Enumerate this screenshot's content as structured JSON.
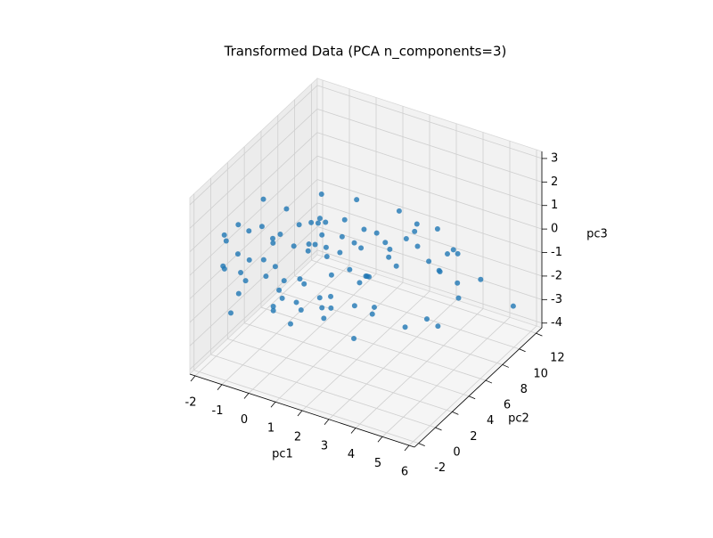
{
  "chart_data": {
    "type": "scatter3d",
    "title": "Transformed Data (PCA n_components=3)",
    "xlabel": "pc1",
    "ylabel": "pc2",
    "zlabel": "pc3",
    "xlim": [
      -2.2,
      6.2
    ],
    "ylim": [
      -2.5,
      12.7
    ],
    "zlim": [
      -4.2,
      3.3
    ],
    "xticks": [
      -2,
      -1,
      0,
      1,
      2,
      3,
      4,
      5,
      6
    ],
    "yticks": [
      -2,
      0,
      2,
      4,
      6,
      8,
      10,
      12
    ],
    "zticks": [
      -4,
      -3,
      -2,
      -1,
      0,
      1,
      2,
      3
    ],
    "grid": true,
    "series": [
      {
        "color": "#1f77b4",
        "x": [
          -1.9,
          -1.5,
          -1.0,
          -0.5,
          0.0,
          0.5,
          1.0,
          1.5,
          2.0,
          2.5,
          -1.8,
          -1.2,
          -0.7,
          -0.2,
          0.3,
          0.8,
          1.3,
          1.8,
          2.3,
          2.8,
          -1.6,
          -1.1,
          -0.6,
          -0.1,
          0.4,
          0.9,
          1.4,
          1.9,
          2.4,
          2.9,
          -1.4,
          -0.9,
          -0.4,
          0.1,
          0.6,
          1.1,
          1.6,
          2.1,
          2.6,
          3.1,
          -2.0,
          -1.3,
          -0.8,
          -0.3,
          0.2,
          0.7,
          1.2,
          1.7,
          2.2,
          2.7,
          -1.7,
          -1.2,
          -0.6,
          0.0,
          0.5,
          1.0,
          1.5,
          2.0,
          2.5,
          3.2,
          -1.5,
          -1.0,
          -0.4,
          0.2,
          0.8,
          1.3,
          1.8,
          2.3,
          2.9,
          3.4,
          3.6,
          3.8,
          4.0,
          4.2,
          3.5,
          3.9,
          4.4,
          3.3,
          3.0,
          4.6,
          3.7,
          4.1,
          2.6,
          3.2,
          4.3,
          5.6,
          3.8,
          2.4,
          1.0,
          2.0
        ],
        "y": [
          0.5,
          1.0,
          -0.5,
          2.0,
          1.5,
          3.0,
          0.0,
          2.5,
          1.0,
          3.5,
          2.0,
          -0.8,
          3.5,
          0.2,
          4.0,
          1.2,
          4.5,
          0.5,
          2.8,
          1.8,
          -0.3,
          2.8,
          1.0,
          5.0,
          -0.6,
          3.8,
          2.0,
          5.2,
          4.2,
          0.8,
          1.6,
          0.4,
          2.4,
          3.2,
          2.2,
          0.1,
          5.8,
          3.4,
          5.5,
          2.6,
          1.2,
          3.4,
          -0.9,
          1.4,
          5.6,
          4.6,
          1.6,
          6.2,
          0.3,
          6.5,
          3.0,
          4.2,
          4.8,
          6.0,
          0.9,
          2.6,
          3.6,
          -0.4,
          4.8,
          4.0,
          -0.6,
          5.2,
          3.0,
          -0.2,
          6.4,
          5.4,
          1.0,
          7.0,
          3.0,
          6.8,
          7.5,
          8.2,
          6.0,
          9.0,
          5.0,
          10.0,
          8.5,
          9.5,
          8.0,
          10.5,
          4.5,
          7.0,
          9.0,
          11.0,
          6.5,
          11.2,
          9.8,
          7.8,
          3.0,
          4.0
        ],
        "z": [
          -0.5,
          0.0,
          -1.0,
          0.5,
          -1.5,
          0.2,
          -0.8,
          -1.2,
          0.4,
          -0.3,
          0.8,
          -1.8,
          0.3,
          -0.2,
          1.0,
          -1.6,
          0.6,
          -0.9,
          -1.4,
          0.1,
          1.2,
          -0.7,
          1.5,
          -0.4,
          0.7,
          1.3,
          -2.0,
          0.9,
          -0.6,
          -1.9,
          -1.3,
          1.4,
          -1.6,
          1.1,
          -0.9,
          0.2,
          -0.2,
          1.0,
          0.5,
          -1.1,
          0.3,
          1.6,
          0.1,
          -2.1,
          -0.1,
          -0.5,
          1.2,
          -1.5,
          -0.7,
          -0.8,
          -1.0,
          -0.3,
          -0.6,
          0.4,
          -2.2,
          1.7,
          0.3,
          -0.1,
          1.1,
          0.6,
          -0.1,
          0.7,
          -1.4,
          -1.2,
          0.5,
          -1.1,
          1.5,
          -0.4,
          -1.6,
          0.2,
          -0.6,
          -1.2,
          -2.4,
          -1.8,
          -2.6,
          -1.0,
          -2.2,
          0.0,
          0.6,
          -2.0,
          1.4,
          -3.0,
          -0.2,
          -1.6,
          -0.4,
          -3.0,
          -0.8,
          1.0,
          2.8,
          2.6
        ]
      }
    ]
  }
}
